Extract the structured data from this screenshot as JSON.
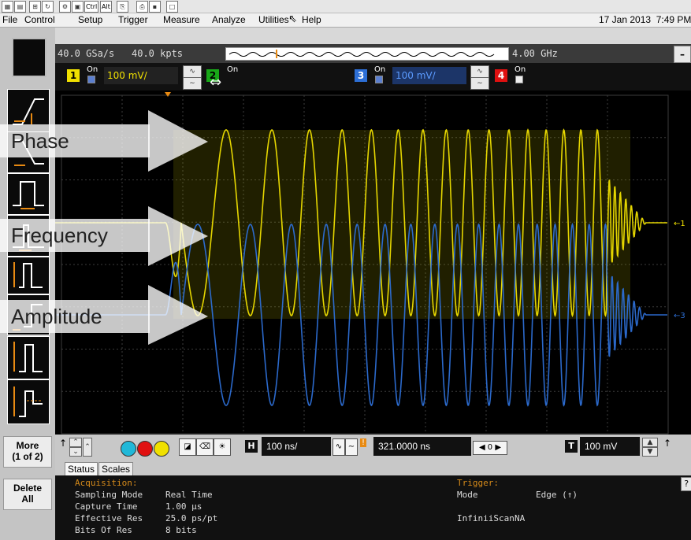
{
  "menu": {
    "items": [
      "File",
      "Control",
      "Setup",
      "Trigger",
      "Measure",
      "Analyze",
      "Utilities",
      "Help"
    ],
    "datetime": "17 Jan 2013  7:49 PM"
  },
  "toolbar": {
    "ctrl": "Ctrl",
    "alt": "Alt"
  },
  "info": {
    "sample_rate": "40.0 GSa/s",
    "memory": "40.0 kpts",
    "bandwidth": "4.00 GHz",
    "minimize": "–"
  },
  "channels": {
    "ch1": {
      "num": "1",
      "on": "On",
      "scale": "100 mV/",
      "color": "#f0e000"
    },
    "ch2": {
      "num": "2",
      "on": "On"
    },
    "ch3": {
      "num": "3",
      "on": "On",
      "scale": "100 mV/",
      "color": "#2d6fd6"
    },
    "ch4": {
      "num": "4",
      "on": "On",
      "color": "#e01010"
    }
  },
  "markers": {
    "ch1": "1",
    "ch3": "3"
  },
  "overlays": {
    "phase": "Phase",
    "frequency": "Frequency",
    "amplitude": "Amplitude"
  },
  "left_panel": {
    "more": "More",
    "more_page": "(1 of 2)",
    "delete": "Delete",
    "delete_all": "All"
  },
  "controls": {
    "h_label": "H",
    "timebase": "100 ns/",
    "delay": "321.0000 ns",
    "t_label": "T",
    "trigger_level": "100 mV",
    "nav": "◀ 0 ▶"
  },
  "status": {
    "tabs": [
      "Status",
      "Scales"
    ],
    "acquisition_title": "Acquisition:",
    "rows": [
      {
        "label": "Sampling Mode",
        "value": "Real Time"
      },
      {
        "label": "Capture Time",
        "value": "1.00 µs"
      },
      {
        "label": "Effective Res",
        "value": "25.0 ps/pt"
      },
      {
        "label": "Bits Of Res",
        "value": "8 bits"
      }
    ],
    "trigger_title": "Trigger:",
    "trigger_rows": [
      {
        "label": "Mode",
        "value": "Edge (↑)"
      },
      {
        "label": "InfiniiScan",
        "value": "NA"
      }
    ],
    "help": "?"
  },
  "colors": {
    "yellow": "#f0e000",
    "blue": "#2d6fd6",
    "orange": "#e88a12",
    "grid": "#3c3c3c"
  }
}
